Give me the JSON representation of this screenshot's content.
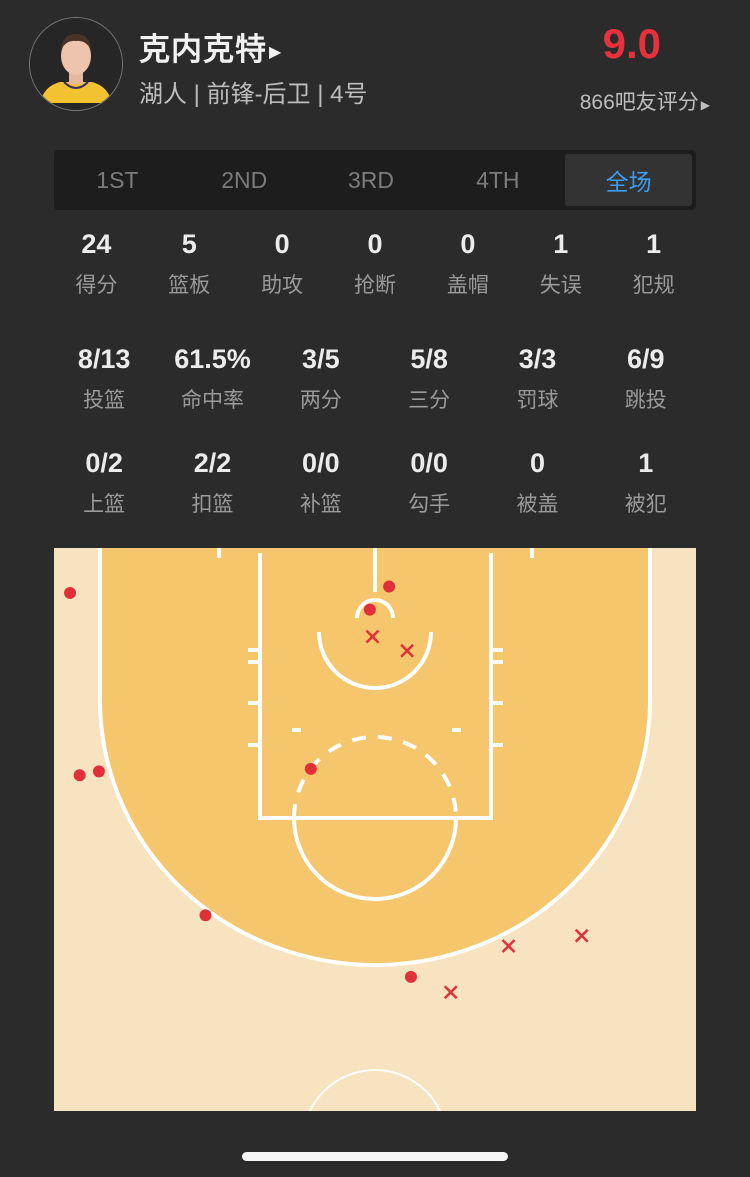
{
  "player": {
    "name": "克内克特",
    "info": "湖人 | 前锋-后卫 | 4号",
    "rating": "9.0",
    "votes": "866吧友评分",
    "arrow_icon": "triangle-right-icon"
  },
  "tabs": [
    {
      "label": "1ST",
      "active": false
    },
    {
      "label": "2ND",
      "active": false
    },
    {
      "label": "3RD",
      "active": false
    },
    {
      "label": "4TH",
      "active": false
    },
    {
      "label": "全场",
      "active": true
    }
  ],
  "stats_row1": [
    {
      "value": "24",
      "label": "得分"
    },
    {
      "value": "5",
      "label": "篮板"
    },
    {
      "value": "0",
      "label": "助攻"
    },
    {
      "value": "0",
      "label": "抢断"
    },
    {
      "value": "0",
      "label": "盖帽"
    },
    {
      "value": "1",
      "label": "失误"
    },
    {
      "value": "1",
      "label": "犯规"
    }
  ],
  "stats_row2": [
    {
      "value": "8/13",
      "label": "投篮"
    },
    {
      "value": "61.5%",
      "label": "命中率"
    },
    {
      "value": "3/5",
      "label": "两分"
    },
    {
      "value": "5/8",
      "label": "三分"
    },
    {
      "value": "3/3",
      "label": "罚球"
    },
    {
      "value": "6/9",
      "label": "跳投"
    }
  ],
  "stats_row3": [
    {
      "value": "0/2",
      "label": "上篮"
    },
    {
      "value": "2/2",
      "label": "扣篮"
    },
    {
      "value": "0/0",
      "label": "补篮"
    },
    {
      "value": "0/0",
      "label": "勾手"
    },
    {
      "value": "0",
      "label": "被盖"
    },
    {
      "value": "1",
      "label": "被犯"
    }
  ],
  "shot_chart": {
    "colors": {
      "paint": "#f5c66c",
      "floor": "#f8e3c0",
      "lines": "#ffffff",
      "marker": "#e2303a",
      "accent": "#3b9cf0",
      "rating": "#e8313d"
    },
    "shots_ft": [
      {
        "x": 1.25,
        "y": 3.5,
        "made": true
      },
      {
        "x": 26.1,
        "y": 3.0,
        "made": true
      },
      {
        "x": 24.6,
        "y": 4.8,
        "made": true
      },
      {
        "x": 20.0,
        "y": 17.2,
        "made": true
      },
      {
        "x": 2.0,
        "y": 17.7,
        "made": true
      },
      {
        "x": 3.5,
        "y": 17.4,
        "made": true
      },
      {
        "x": 11.8,
        "y": 28.6,
        "made": true
      },
      {
        "x": 27.8,
        "y": 33.4,
        "made": true
      },
      {
        "x": 24.8,
        "y": 6.9,
        "made": false
      },
      {
        "x": 27.5,
        "y": 8.0,
        "made": false
      },
      {
        "x": 35.4,
        "y": 31.0,
        "made": false
      },
      {
        "x": 41.1,
        "y": 30.2,
        "made": false
      },
      {
        "x": 30.9,
        "y": 34.6,
        "made": false
      }
    ]
  }
}
